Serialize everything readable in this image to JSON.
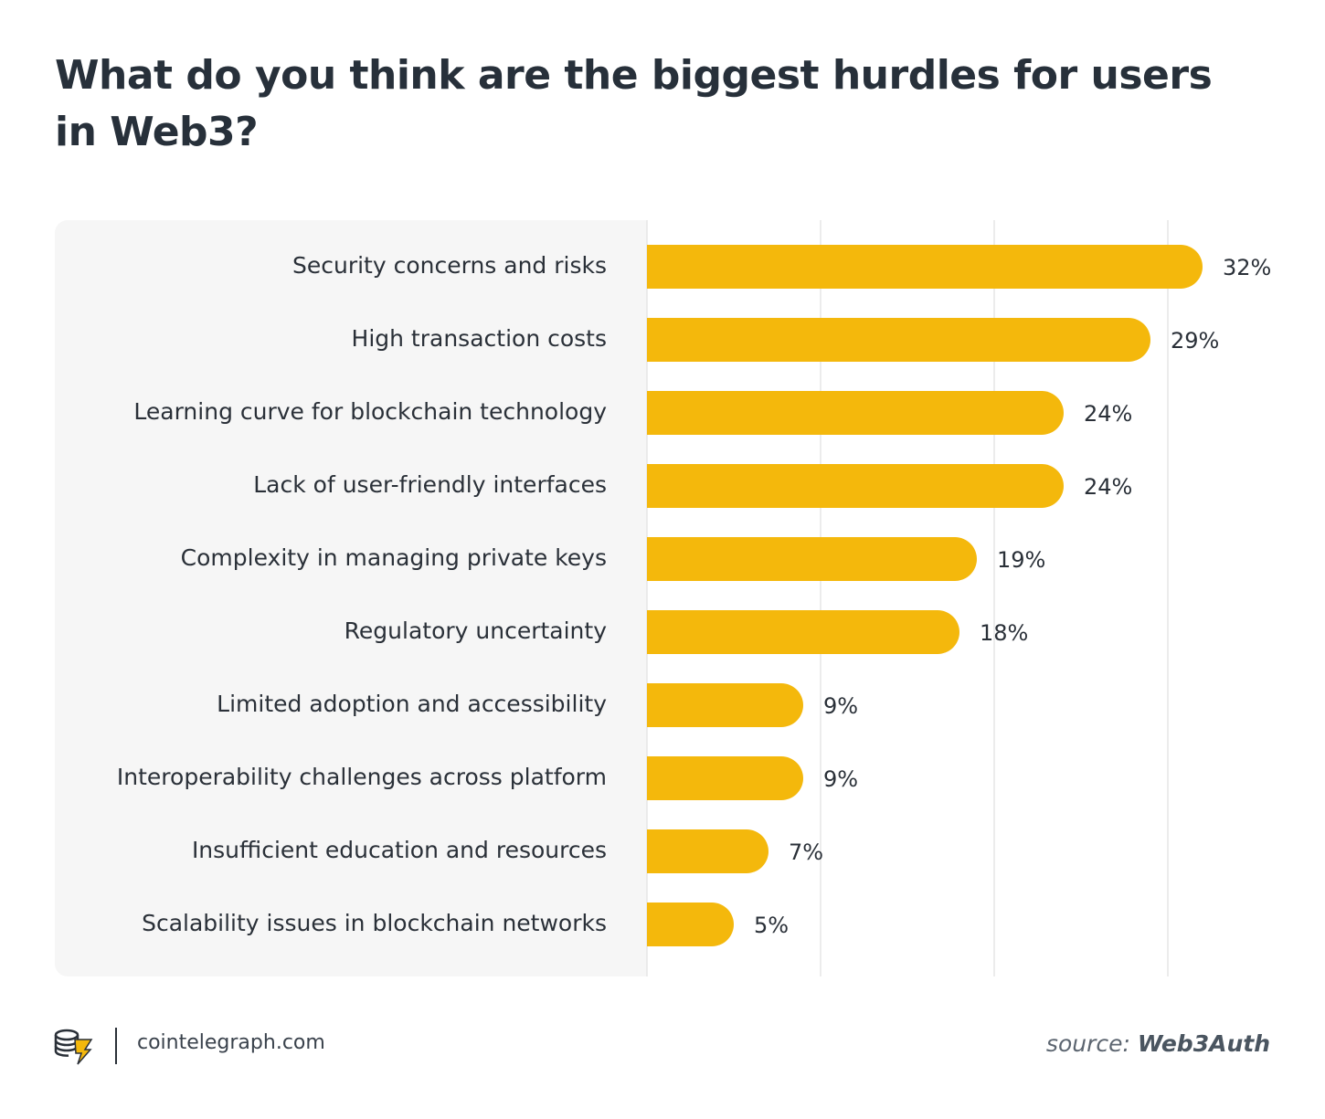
{
  "title": "What do you think are the biggest hurdles for users in Web3?",
  "colors": {
    "bar": "#f4b80c",
    "panel": "#f6f6f6",
    "grid": "#e6e6e6",
    "text": "#2a3038"
  },
  "chart_data": {
    "type": "bar",
    "orientation": "horizontal",
    "title": "What do you think are the biggest hurdles for users in Web3?",
    "categories": [
      "Security concerns and risks",
      "High transaction costs",
      "Learning curve for blockchain technology",
      "Lack of user-friendly interfaces",
      "Complexity in managing private keys",
      "Regulatory uncertainty",
      "Limited adoption and accessibility",
      "Interoperability challenges across platform",
      "Insufficient education and resources",
      "Scalability issues in blockchain networks"
    ],
    "values": [
      32,
      29,
      24,
      24,
      19,
      18,
      9,
      9,
      7,
      5
    ],
    "value_labels": [
      "32%",
      "29%",
      "24%",
      "24%",
      "19%",
      "18%",
      "9%",
      "9%",
      "7%",
      "5%"
    ],
    "unit": "%",
    "xlim": [
      0,
      33
    ],
    "gridlines": [
      0,
      10,
      20,
      30
    ],
    "grid": true,
    "legend": "none"
  },
  "footer": {
    "logo_icon": "cointelegraph-logo-icon",
    "site": "cointelegraph.com",
    "source_prefix": "source:",
    "source_name": "Web3Auth"
  }
}
